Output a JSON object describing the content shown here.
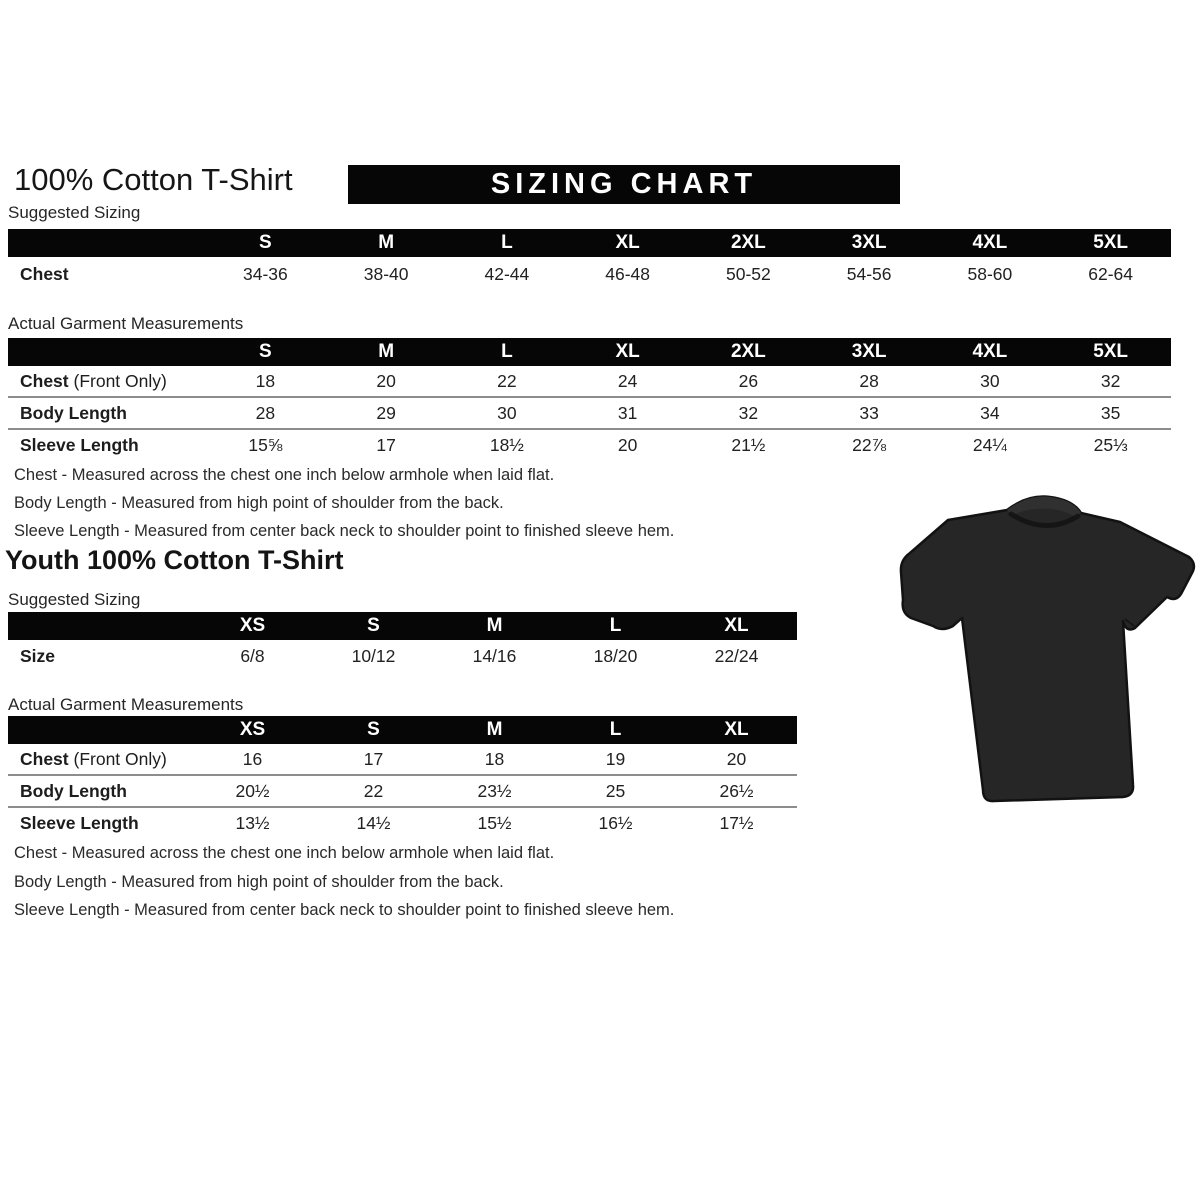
{
  "header": {
    "title": "100% Cotton T-Shirt",
    "banner": "SIZING CHART"
  },
  "adult": {
    "suggested_label": "Suggested Sizing",
    "suggested": {
      "sizes": [
        "S",
        "M",
        "L",
        "XL",
        "2XL",
        "3XL",
        "4XL",
        "5XL"
      ],
      "rows": [
        {
          "label": "Chest",
          "suffix": "",
          "values": [
            "34-36",
            "38-40",
            "42-44",
            "46-48",
            "50-52",
            "54-56",
            "58-60",
            "62-64"
          ]
        }
      ]
    },
    "actual_label": "Actual Garment Measurements",
    "actual": {
      "sizes": [
        "S",
        "M",
        "L",
        "XL",
        "2XL",
        "3XL",
        "4XL",
        "5XL"
      ],
      "rows": [
        {
          "label": "Chest",
          "suffix": " (Front Only)",
          "values": [
            "18",
            "20",
            "22",
            "24",
            "26",
            "28",
            "30",
            "32"
          ]
        },
        {
          "label": "Body Length",
          "suffix": "",
          "values": [
            "28",
            "29",
            "30",
            "31",
            "32",
            "33",
            "34",
            "35"
          ]
        },
        {
          "label": "Sleeve Length",
          "suffix": "",
          "values": [
            "15⅝",
            "17",
            "18½",
            "20",
            "21½",
            "22⅞",
            "24¼",
            "25⅓"
          ]
        }
      ]
    },
    "notes": [
      "Chest - Measured across the chest one inch below armhole when laid flat.",
      "Body Length - Measured from high point of shoulder from the back.",
      "Sleeve Length - Measured from center back neck to shoulder point to finished sleeve hem."
    ]
  },
  "youth": {
    "title": "Youth 100% Cotton T-Shirt",
    "suggested_label": "Suggested Sizing",
    "suggested": {
      "sizes": [
        "XS",
        "S",
        "M",
        "L",
        "XL"
      ],
      "rows": [
        {
          "label": "Size",
          "suffix": "",
          "values": [
            "6/8",
            "10/12",
            "14/16",
            "18/20",
            "22/24"
          ]
        }
      ]
    },
    "actual_label": "Actual Garment Measurements",
    "actual": {
      "sizes": [
        "XS",
        "S",
        "M",
        "L",
        "XL"
      ],
      "rows": [
        {
          "label": "Chest",
          "suffix": " (Front Only)",
          "values": [
            "16",
            "17",
            "18",
            "19",
            "20"
          ]
        },
        {
          "label": "Body Length",
          "suffix": "",
          "values": [
            "20½",
            "22",
            "23½",
            "25",
            "26½"
          ]
        },
        {
          "label": "Sleeve Length",
          "suffix": "",
          "values": [
            "13½",
            "14½",
            "15½",
            "16½",
            "17½"
          ]
        }
      ]
    },
    "notes": [
      "Chest - Measured across the chest one inch below armhole when laid flat.",
      "Body Length - Measured from high point of shoulder from the back.",
      "Sleeve Length - Measured from center back neck to shoulder point to finished sleeve hem."
    ]
  },
  "image": {
    "shirt_color": "#262626"
  }
}
